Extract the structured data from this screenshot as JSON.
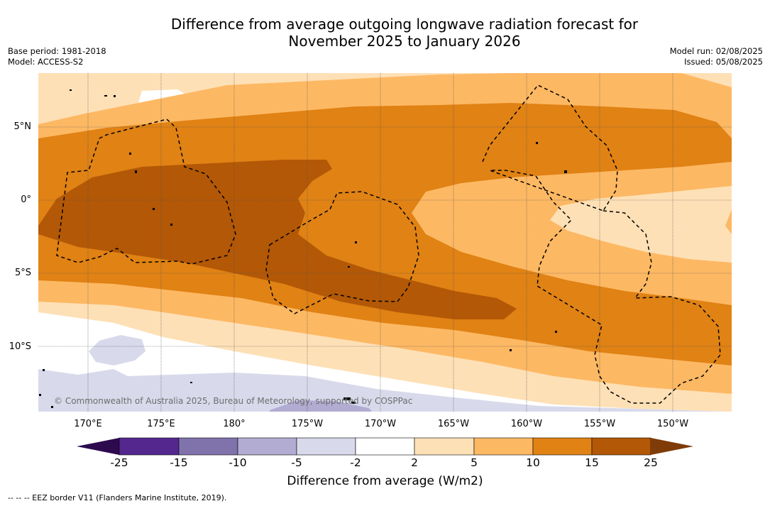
{
  "header": {
    "title_line1": "Difference from average outgoing longwave radiation forecast for",
    "title_line2": "November 2025 to January 2026",
    "base_period": "Base period: 1981-2018",
    "model": "Model: ACCESS-S2",
    "model_run": "Model run: 02/08/2025",
    "issued": "Issued: 05/08/2025"
  },
  "map": {
    "lat_labels": [
      "5°N",
      "0°",
      "5°S",
      "10°S"
    ],
    "lon_labels": [
      "170°E",
      "175°E",
      "180°",
      "175°W",
      "170°W",
      "165°W",
      "160°W",
      "155°W",
      "150°W"
    ],
    "copyright": "© Commonwealth of Australia 2025, Bureau of Meteorology, supported by COSPPac",
    "eez_note": "--  --  -- EEZ border V11 (Flanders Marine Institute, 2019)."
  },
  "colorbar": {
    "ticks": [
      "-25",
      "-15",
      "-10",
      "-5",
      "-2",
      "2",
      "5",
      "10",
      "15",
      "25"
    ],
    "colors": [
      "#2d0a4e",
      "#54278f",
      "#8073ac",
      "#b2abd2",
      "#d8daeb",
      "#ffffff",
      "#fee0b6",
      "#fdb863",
      "#e08214",
      "#b35806",
      "#7f3b08"
    ],
    "label": "Difference from average (W/m2)"
  }
}
